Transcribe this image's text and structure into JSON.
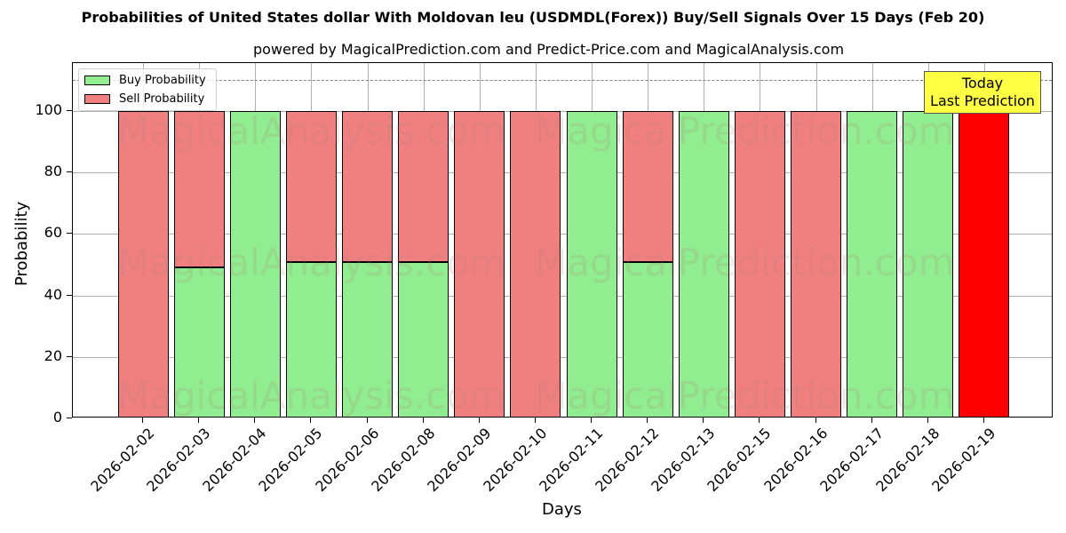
{
  "chart_data": {
    "type": "bar",
    "stacked": true,
    "title": "Probabilities of United States dollar With Moldovan leu (USDMDL(Forex)) Buy/Sell Signals Over 15 Days (Feb 20)",
    "subtitle": "powered by MagicalPrediction.com and Predict-Price.com and MagicalAnalysis.com",
    "xlabel": "Days",
    "ylabel": "Probability",
    "ylim": [
      0,
      115.6
    ],
    "yticks": [
      0,
      20,
      40,
      60,
      80,
      100
    ],
    "reference_line": 110,
    "grid": true,
    "legend_position": "upper left",
    "categories": [
      "2026-02-02",
      "2026-02-03",
      "2026-02-04",
      "2026-02-05",
      "2026-02-06",
      "2026-02-08",
      "2026-02-09",
      "2026-02-10",
      "2026-02-11",
      "2026-02-12",
      "2026-02-13",
      "2026-02-15",
      "2026-02-16",
      "2026-02-17",
      "2026-02-18",
      "2026-02-19"
    ],
    "series": [
      {
        "name": "Buy Probability",
        "color": "#90ee90",
        "values": [
          0,
          49,
          100,
          51,
          51,
          51,
          0,
          0,
          100,
          51,
          100,
          0,
          0,
          100,
          100,
          0
        ]
      },
      {
        "name": "Sell Probability",
        "color": "#f08080",
        "values": [
          100,
          51,
          0,
          49,
          49,
          49,
          100,
          100,
          0,
          49,
          0,
          100,
          100,
          0,
          0,
          100
        ]
      }
    ],
    "highlight": {
      "index": 15,
      "color": "#ff0000",
      "label": "Today\nLast Prediction"
    },
    "annotation": {
      "line1": "Today",
      "line2": "Last Prediction"
    },
    "watermarks": [
      "MagicalAnalysis.com",
      "MagicalPrediction.com"
    ]
  },
  "legend": {
    "buy": "Buy Probability",
    "sell": "Sell Probability"
  }
}
